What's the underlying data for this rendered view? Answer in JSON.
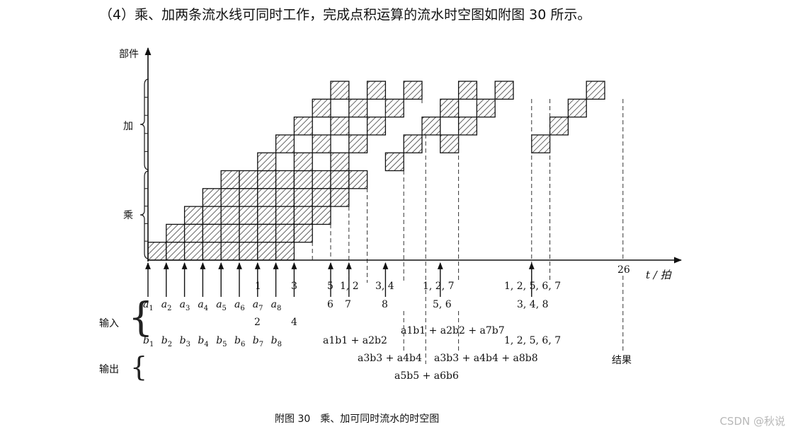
{
  "heading": "（4）乘、加两条流水线可同时工作，完成点积运算的流水时空图如附图 30 所示。",
  "axis": {
    "y_label": "部件",
    "x_label": "t / 拍",
    "group_add": "加",
    "group_mul": "乘",
    "final_tick": "26"
  },
  "rows": {
    "input_label": "输入",
    "output_label": "输出",
    "a_terms": [
      "a1",
      "a2",
      "a3",
      "a4",
      "a5",
      "a6",
      "a7",
      "a8"
    ],
    "b_terms": [
      "b1",
      "b2",
      "b3",
      "b4",
      "b5",
      "b6",
      "b7",
      "b8"
    ],
    "result_label": "结果"
  },
  "tick_labels": {
    "t7_top": "1",
    "t7_bottom": "2",
    "t9_top": "3",
    "t9_bottom": "4",
    "t11_top": "5",
    "t11_bottom": "6",
    "t12_top": "1, 2",
    "t12_bottom": "7",
    "t14_top": "3, 4",
    "t14_bottom": "8",
    "t17_top": "1, 2, 7",
    "t17_bottom": "5, 6",
    "t22_top": "1, 2, 5, 6, 7",
    "t22_mid": "3, 4, 8",
    "t22_low": "1, 2, 5, 6, 7"
  },
  "expressions": {
    "e1": "a1b1 + a2b2",
    "e2": "a3b3 + a4b4",
    "e3": "a5b5 + a6b6",
    "e4": "a1b1 + a2b2 + a7b7",
    "e5": "a3b3 + a4b4 + a8b8"
  },
  "caption": "附图 30　乘、加可同时流水的时空图",
  "watermark": "CSDN @秋说",
  "colors": {
    "ink": "#111111",
    "hatch": "#222222",
    "paper": "#ffffff"
  }
}
